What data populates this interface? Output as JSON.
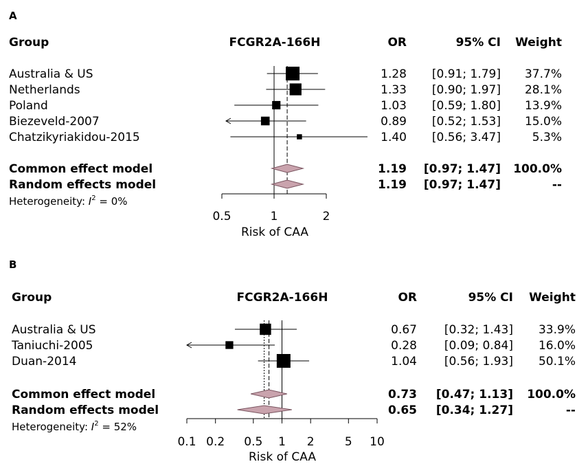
{
  "chart_data": [
    {
      "type": "forest",
      "panel_label": "A",
      "exposure_label": "FCGR2A-166H",
      "columns": {
        "group": "Group",
        "or": "OR",
        "ci": "95% CI",
        "weight": "Weight"
      },
      "scale": "log",
      "xlim": [
        0.5,
        2
      ],
      "xticks": [
        "0.5",
        "1",
        "2"
      ],
      "xlabel": "Risk of CAA",
      "studies": [
        {
          "name": "Australia & US",
          "or": 1.28,
          "lo": 0.91,
          "hi": 1.79,
          "or_text": "1.28",
          "ci_text": "[0.91; 1.79]",
          "weight": 37.7,
          "weight_text": "37.7%"
        },
        {
          "name": "Netherlands",
          "or": 1.33,
          "lo": 0.9,
          "hi": 1.97,
          "or_text": "1.33",
          "ci_text": "[0.90; 1.97]",
          "weight": 28.1,
          "weight_text": "28.1%"
        },
        {
          "name": "Poland",
          "or": 1.03,
          "lo": 0.59,
          "hi": 1.8,
          "or_text": "1.03",
          "ci_text": "[0.59; 1.80]",
          "weight": 13.9,
          "weight_text": "13.9%"
        },
        {
          "name": "Biezeveld-2007",
          "or": 0.89,
          "lo": 0.52,
          "hi": 1.53,
          "or_text": "0.89",
          "ci_text": "[0.52; 1.53]",
          "weight": 15.0,
          "weight_text": "15.0%"
        },
        {
          "name": "Chatzikyriakidou-2015",
          "or": 1.4,
          "lo": 0.56,
          "hi": 3.47,
          "or_text": "1.40",
          "ci_text": "[0.56; 3.47]",
          "weight": 5.3,
          "weight_text": "5.3%"
        }
      ],
      "models": [
        {
          "name": "Common effect model",
          "or": 1.19,
          "lo": 0.97,
          "hi": 1.47,
          "or_text": "1.19",
          "ci_text": "[0.97; 1.47]",
          "weight_text": "100.0%"
        },
        {
          "name": "Random effects model",
          "or": 1.19,
          "lo": 0.97,
          "hi": 1.47,
          "or_text": "1.19",
          "ci_text": "[0.97; 1.47]",
          "weight_text": "--"
        }
      ],
      "heterogeneity_prefix": "Heterogeneity: ",
      "heterogeneity_symbol": "I",
      "heterogeneity_power": "2",
      "heterogeneity_value": " = 0%"
    },
    {
      "type": "forest",
      "panel_label": "B",
      "exposure_label": "FCGR2A-166H",
      "columns": {
        "group": "Group",
        "or": "OR",
        "ci": "95% CI",
        "weight": "Weight"
      },
      "scale": "log",
      "xlim": [
        0.1,
        10
      ],
      "xticks": [
        "0.1",
        "0.2",
        "0.5",
        "1",
        "2",
        "5",
        "10"
      ],
      "xlabel": "Risk of CAA",
      "studies": [
        {
          "name": "Australia & US",
          "or": 0.67,
          "lo": 0.32,
          "hi": 1.43,
          "or_text": "0.67",
          "ci_text": "[0.32; 1.43]",
          "weight": 33.9,
          "weight_text": "33.9%"
        },
        {
          "name": "Taniuchi-2005",
          "or": 0.28,
          "lo": 0.09,
          "hi": 0.84,
          "or_text": "0.28",
          "ci_text": "[0.09; 0.84]",
          "weight": 16.0,
          "weight_text": "16.0%"
        },
        {
          "name": "Duan-2014",
          "or": 1.04,
          "lo": 0.56,
          "hi": 1.93,
          "or_text": "1.04",
          "ci_text": "[0.56; 1.93]",
          "weight": 50.1,
          "weight_text": "50.1%"
        }
      ],
      "models": [
        {
          "name": "Common effect model",
          "or": 0.73,
          "lo": 0.47,
          "hi": 1.13,
          "or_text": "0.73",
          "ci_text": "[0.47; 1.13]",
          "weight_text": "100.0%"
        },
        {
          "name": "Random effects model",
          "or": 0.65,
          "lo": 0.34,
          "hi": 1.27,
          "or_text": "0.65",
          "ci_text": "[0.34; 1.27]",
          "weight_text": "--"
        }
      ],
      "heterogeneity_prefix": "Heterogeneity: ",
      "heterogeneity_symbol": "I",
      "heterogeneity_power": "2",
      "heterogeneity_value": " = 52%"
    }
  ],
  "colors": {
    "diamond_fill": "#c9a3ad",
    "diamond_stroke": "#7a5560",
    "square": "#000000",
    "line": "#000000"
  }
}
